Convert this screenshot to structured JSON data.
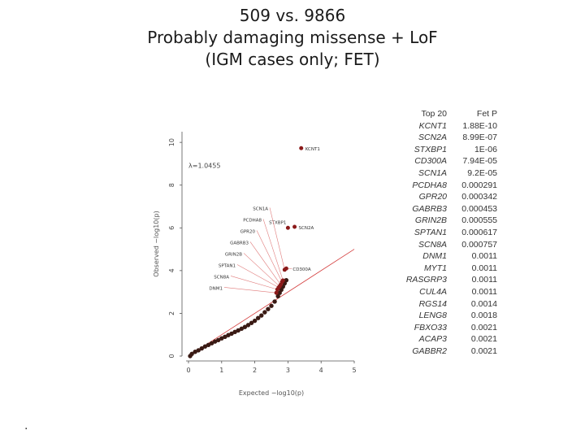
{
  "title_lines": [
    "509 vs. 9866",
    "Probably damaging missense + LoF",
    "(IGM cases only; FET)"
  ],
  "footnote": ".",
  "table": {
    "headers": [
      "Top 20",
      "Fet P"
    ],
    "rows": [
      [
        "KCNT1",
        "1.88E-10"
      ],
      [
        "SCN2A",
        "8.99E-07"
      ],
      [
        "STXBP1",
        "1E-06"
      ],
      [
        "CD300A",
        "7.94E-05"
      ],
      [
        "SCN1A",
        "9.2E-05"
      ],
      [
        "PCDHA8",
        "0.000291"
      ],
      [
        "GPR20",
        "0.000342"
      ],
      [
        "GABRB3",
        "0.000453"
      ],
      [
        "GRIN2B",
        "0.000555"
      ],
      [
        "SPTAN1",
        "0.000617"
      ],
      [
        "SCN8A",
        "0.000757"
      ],
      [
        "DNM1",
        "0.0011"
      ],
      [
        "MYT1",
        "0.0011"
      ],
      [
        "RASGRP3",
        "0.0011"
      ],
      [
        "CUL4A",
        "0.0011"
      ],
      [
        "RGS14",
        "0.0014"
      ],
      [
        "LENG8",
        "0.0018"
      ],
      [
        "FBXO33",
        "0.0021"
      ],
      [
        "ACAP3",
        "0.0021"
      ],
      [
        "GABBR2",
        "0.0021"
      ]
    ]
  },
  "chart_data": {
    "type": "scatter",
    "xlabel": "Expected −log10(p)",
    "ylabel": "Observed −log10(p)",
    "annotation": "λ=1.0455",
    "xlim": [
      0,
      5
    ],
    "ylim": [
      0,
      10.5
    ],
    "x_ticks": [
      0,
      1,
      2,
      3,
      4,
      5
    ],
    "y_ticks": [
      0,
      2,
      4,
      6,
      8,
      10
    ],
    "grid": false,
    "diagonal_reference": true,
    "bulk_points": [
      [
        0.05,
        0.0
      ],
      [
        0.1,
        0.1
      ],
      [
        0.2,
        0.2
      ],
      [
        0.3,
        0.27
      ],
      [
        0.4,
        0.36
      ],
      [
        0.5,
        0.45
      ],
      [
        0.6,
        0.52
      ],
      [
        0.7,
        0.6
      ],
      [
        0.8,
        0.68
      ],
      [
        0.9,
        0.75
      ],
      [
        1.0,
        0.83
      ],
      [
        1.1,
        0.9
      ],
      [
        1.2,
        0.98
      ],
      [
        1.3,
        1.05
      ],
      [
        1.4,
        1.13
      ],
      [
        1.5,
        1.2
      ],
      [
        1.6,
        1.28
      ],
      [
        1.7,
        1.36
      ],
      [
        1.8,
        1.45
      ],
      [
        1.9,
        1.55
      ],
      [
        2.0,
        1.65
      ],
      [
        2.1,
        1.78
      ],
      [
        2.2,
        1.9
      ],
      [
        2.3,
        2.05
      ],
      [
        2.4,
        2.2
      ],
      [
        2.5,
        2.35
      ],
      [
        2.6,
        2.55
      ],
      [
        2.7,
        2.8
      ],
      [
        2.75,
        2.96
      ],
      [
        2.8,
        3.1
      ],
      [
        2.85,
        3.25
      ],
      [
        2.9,
        3.4
      ],
      [
        2.95,
        3.55
      ]
    ],
    "labeled_points": [
      {
        "gene": "KCNT1",
        "x": 3.4,
        "y": 9.73
      },
      {
        "gene": "STXBP1",
        "x": 3.0,
        "y": 6.0
      },
      {
        "gene": "SCN2A",
        "x": 3.2,
        "y": 6.05
      },
      {
        "gene": "CD300A",
        "x": 2.95,
        "y": 4.1
      },
      {
        "gene": "SCN1A",
        "x": 2.9,
        "y": 4.04
      },
      {
        "gene": "PCDHA8",
        "x": 2.85,
        "y": 3.54
      },
      {
        "gene": "GPR20",
        "x": 2.82,
        "y": 3.47
      },
      {
        "gene": "GABRB3",
        "x": 2.78,
        "y": 3.34
      },
      {
        "gene": "GRIN2B",
        "x": 2.75,
        "y": 3.26
      },
      {
        "gene": "SPTAN1",
        "x": 2.72,
        "y": 3.21
      },
      {
        "gene": "SCN8A",
        "x": 2.68,
        "y": 3.12
      },
      {
        "gene": "DNM1",
        "x": 2.65,
        "y": 2.96
      }
    ],
    "colors": {
      "points": "#3a1a14",
      "labeled_points": "#8b1a1a",
      "reference_line": "#d33a3a",
      "leader_lines": "#e07a7a",
      "axis": "#555555"
    }
  }
}
